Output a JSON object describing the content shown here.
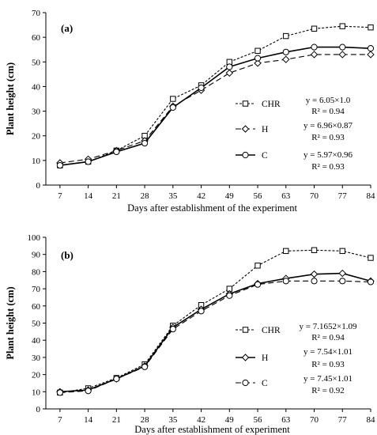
{
  "chart_data": [
    {
      "type": "line",
      "panel_label": "(a)",
      "title": "",
      "xlabel": "Days after establishment of the experiment",
      "ylabel": "Plant height (cm)",
      "x": [
        7,
        14,
        21,
        28,
        35,
        42,
        49,
        56,
        63,
        70,
        77,
        84
      ],
      "xlim": [
        7,
        84
      ],
      "ylim": [
        0,
        70
      ],
      "yticks": [
        0,
        10,
        20,
        30,
        40,
        50,
        60,
        70
      ],
      "grid": false,
      "legend_placement": "right",
      "series": [
        {
          "name": "CHR",
          "marker": "square",
          "dash": "short-dash",
          "values": [
            8,
            9.5,
            14,
            20,
            35,
            40.5,
            50,
            54.5,
            60.5,
            63.5,
            64.5,
            64
          ],
          "equation": "y = 6.05×1.0",
          "r2": "R² = 0.94"
        },
        {
          "name": "H",
          "marker": "diamond",
          "dash": "long-dash",
          "values": [
            9,
            10.5,
            14,
            18,
            32,
            38.5,
            45.5,
            49.5,
            51,
            53,
            53,
            53
          ],
          "equation": "y = 6.96×0.87",
          "r2": "R² = 0.93"
        },
        {
          "name": "C",
          "marker": "circle",
          "dash": "solid",
          "values": [
            8,
            9.5,
            13.5,
            17,
            31.5,
            39.5,
            48,
            51.5,
            54,
            56,
            56,
            55.5
          ],
          "equation": "y = 5.97×0.96",
          "r2": "R² = 0.93"
        }
      ]
    },
    {
      "type": "line",
      "panel_label": "(b)",
      "title": "",
      "xlabel": "Days after establishment of experiment",
      "ylabel": "Plant height (cm)",
      "x": [
        7,
        14,
        21,
        28,
        35,
        42,
        49,
        56,
        63,
        70,
        77,
        84
      ],
      "xlim": [
        7,
        84
      ],
      "ylim": [
        0,
        100
      ],
      "yticks": [
        0,
        10,
        20,
        30,
        40,
        50,
        60,
        70,
        80,
        90,
        100
      ],
      "grid": false,
      "legend_placement": "right",
      "series": [
        {
          "name": "CHR",
          "marker": "square",
          "dash": "short-dash",
          "values": [
            9.5,
            12,
            18,
            26,
            48.5,
            60.5,
            70,
            83.5,
            92,
            92.5,
            92,
            88
          ],
          "equation": "y = 7.1652×1.09",
          "r2": "R² = 0.94"
        },
        {
          "name": "H",
          "marker": "diamond",
          "dash": "solid",
          "values": [
            10,
            11,
            17.5,
            25,
            47.5,
            58,
            67,
            73,
            76,
            78.5,
            79,
            74.5
          ],
          "equation": "y = 7.54×1.01",
          "r2": "R² = 0.93"
        },
        {
          "name": "C",
          "marker": "circle",
          "dash": "long-dash",
          "values": [
            9.5,
            10.5,
            17.5,
            24.5,
            46.5,
            57,
            66,
            72.5,
            74.5,
            74.5,
            74.5,
            74
          ],
          "equation": "y = 7.45×1.01",
          "r2": "R² = 0.92"
        }
      ]
    }
  ]
}
